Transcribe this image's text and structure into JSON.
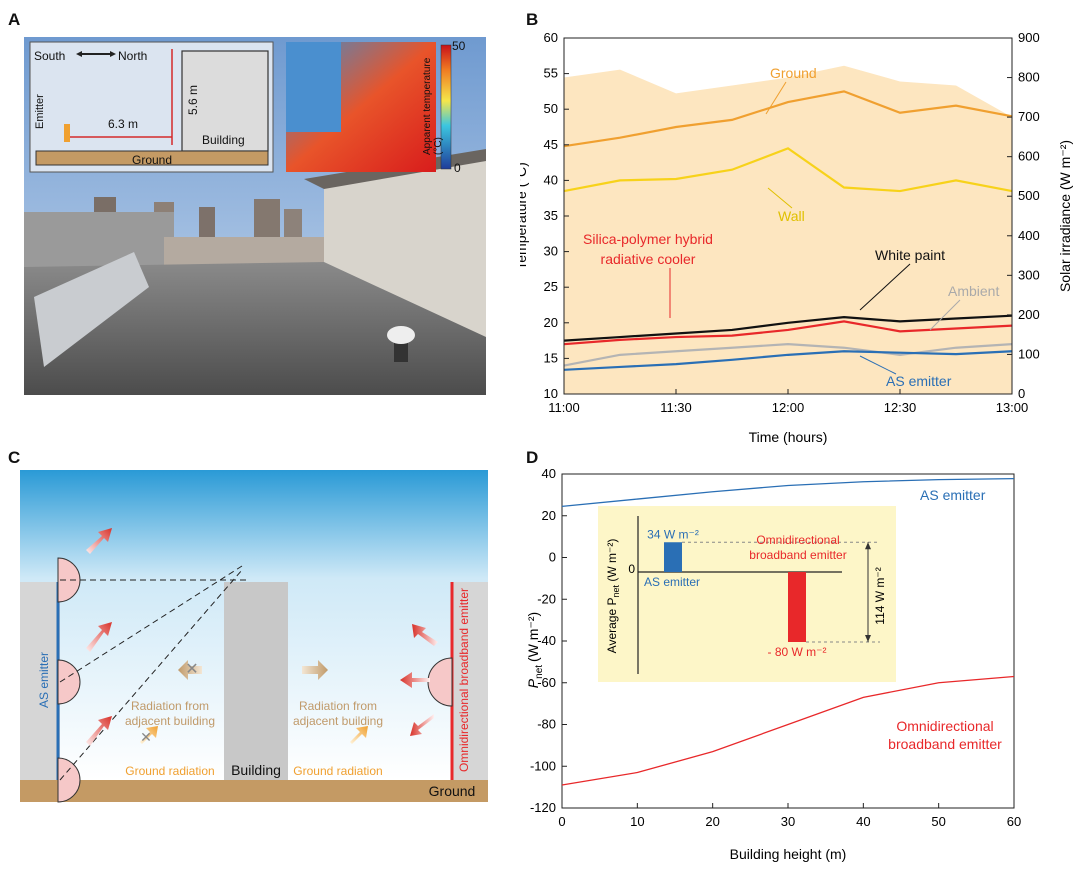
{
  "panel_labels": {
    "a": "A",
    "b": "B",
    "c": "C",
    "d": "D"
  },
  "panelA": {
    "inset": {
      "south": "South",
      "north": "North",
      "emitter": "Emitter",
      "distance": "6.3 m",
      "height": "5.6 m",
      "building": "Building",
      "ground": "Ground"
    },
    "thermal": {
      "max": "50",
      "min": "0",
      "label": "Apparent temperature (°C)"
    }
  },
  "panelC": {
    "as_emitter": "AS emitter",
    "omni": "Omnidirectional broadband emitter",
    "rad_adj_left_1": "Radiation from",
    "rad_adj_left_2": "adjacent building",
    "rad_adj_right_1": "Radiation from",
    "rad_adj_right_2": "adjacent building",
    "ground_rad_left": "Ground radiation",
    "ground_rad_right": "Ground radiation",
    "building": "Building",
    "ground": "Ground"
  },
  "chart_data": [
    {
      "type": "line",
      "panel": "B",
      "xlabel": "Time (hours)",
      "ylabel": "Temperature (°C)",
      "y2label": "Solar irradiance (W m⁻²)",
      "x_ticks": [
        "11:00",
        "11:30",
        "12:00",
        "12:30",
        "13:00"
      ],
      "ylim": [
        10,
        60
      ],
      "y2lim": [
        0,
        900
      ],
      "y_ticks": [
        10,
        15,
        20,
        25,
        30,
        35,
        40,
        45,
        50,
        55,
        60
      ],
      "y2_ticks": [
        0,
        100,
        200,
        300,
        400,
        500,
        600,
        700,
        800,
        900
      ],
      "x_minutes": [
        0,
        15,
        30,
        45,
        60,
        75,
        90,
        105,
        120
      ],
      "series": [
        {
          "name": "Ground",
          "color": "#f0a030",
          "values": [
            44.8,
            46,
            47.5,
            48.5,
            51,
            52.5,
            49.5,
            50.5,
            49
          ]
        },
        {
          "name": "Wall",
          "color": "#f7d21a",
          "values": [
            38.5,
            40,
            40.2,
            41.5,
            44.5,
            39,
            38.5,
            40,
            38.5
          ]
        },
        {
          "name": "White paint",
          "color": "#111111",
          "values": [
            17.5,
            18,
            18.5,
            19,
            20,
            20.8,
            20.2,
            20.6,
            21
          ]
        },
        {
          "name": "Silica-polymer hybrid radiative cooler",
          "color": "#e8282a",
          "values": [
            17,
            17.6,
            18,
            18.2,
            19,
            20.2,
            18.8,
            19.2,
            19.6
          ]
        },
        {
          "name": "Ambient",
          "color": "#b4b4b4",
          "values": [
            14,
            15.5,
            16,
            16.5,
            17,
            16.5,
            15.5,
            16.5,
            17
          ]
        },
        {
          "name": "AS emitter",
          "color": "#2a6fb5",
          "values": [
            13.4,
            13.8,
            14.2,
            14.8,
            15.5,
            16,
            15.8,
            15.6,
            16
          ]
        }
      ],
      "annotations": {
        "ground": "Ground",
        "wall": "Wall",
        "white_paint": "White paint",
        "hybrid_1": "Silica-polymer hybrid",
        "hybrid_2": "radiative cooler",
        "ambient": "Ambient",
        "as_emitter": "AS emitter"
      },
      "irradiance_series": {
        "name": "Solar irradiance",
        "color": "#fde6c0",
        "values": [
          800,
          820,
          760,
          780,
          800,
          830,
          790,
          780,
          700
        ]
      }
    },
    {
      "type": "line",
      "panel": "D",
      "xlabel": "Building height (m)",
      "ylabel": "P",
      "ylabel_sub": "net",
      "ylabel_unit": "(W m⁻²)",
      "xlim": [
        0,
        60
      ],
      "ylim": [
        -120,
        40
      ],
      "x_ticks": [
        0,
        10,
        20,
        30,
        40,
        50,
        60
      ],
      "y_ticks": [
        -120,
        -100,
        -80,
        -60,
        -40,
        -20,
        0,
        20,
        40
      ],
      "x": [
        0,
        10,
        20,
        30,
        40,
        50,
        60
      ],
      "series": [
        {
          "name": "AS emitter",
          "color": "#2a6fb5",
          "values": [
            24.5,
            28,
            31.5,
            34.5,
            36.3,
            37.3,
            37.8
          ]
        },
        {
          "name": "Omnidirectional broadband emitter",
          "color": "#e8282a",
          "values": [
            -109,
            -103,
            -93,
            -80,
            -67,
            -60,
            -57
          ]
        }
      ],
      "labels": {
        "as": "AS emitter",
        "omni_1": "Omnidirectional",
        "omni_2": "broadband emitter"
      },
      "inset": {
        "type": "bar",
        "categories": [
          "AS emitter",
          "Omnidirectional broadband emitter"
        ],
        "values": [
          34,
          -80
        ],
        "colors": [
          "#2a6fb5",
          "#e8282a"
        ],
        "value_labels": [
          "34 W m⁻²",
          "- 80 W m⁻²"
        ],
        "zero": "0",
        "diff": "114 W m⁻²",
        "ylabel": "Average P",
        "ylabel_sub": "net",
        "ylabel_unit": " (W m⁻²)",
        "cat1": "AS emitter",
        "cat2_1": "Omnidirectional",
        "cat2_2": "broadband emitter"
      }
    }
  ]
}
